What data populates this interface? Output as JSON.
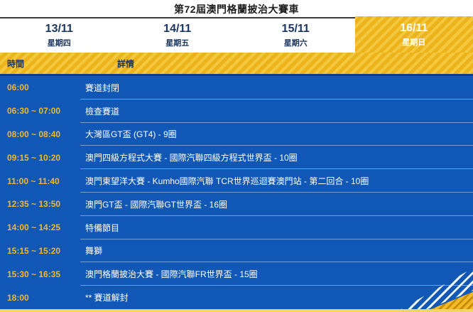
{
  "title": "第72屆澳門格蘭披治大賽車",
  "tabs": [
    {
      "date": "13/11",
      "weekday": "星期四",
      "active": false
    },
    {
      "date": "14/11",
      "weekday": "星期五",
      "active": false
    },
    {
      "date": "15/11",
      "weekday": "星期六",
      "active": false
    },
    {
      "date": "16/11",
      "weekday": "星期日",
      "active": true
    }
  ],
  "schedule": {
    "header": {
      "time": "時間",
      "details": "詳情"
    },
    "rows": [
      {
        "time": "06:00",
        "details": "賽道封閉"
      },
      {
        "time": "06:30 ~ 07:00",
        "details": "檢查賽道"
      },
      {
        "time": "08:00 ~ 08:40",
        "details": "大灣區GT盃 (GT4) - 9圈"
      },
      {
        "time": "09:15 ~ 10:20",
        "details": "澳門四級方程式大賽 - 國際汽聯四級方程式世界盃 - 10圈"
      },
      {
        "time": "11:00 ~ 11:40",
        "details": "澳門東望洋大賽 - Kumho國際汽聯 TCR世界巡迴賽澳門站 - 第二回合 - 10圈"
      },
      {
        "time": "12:35 ~ 13:50",
        "details": "澳門GT盃 - 國際汽聯GT世界盃 - 16圈"
      },
      {
        "time": "14:00 ~ 14:25",
        "details": "特備節目"
      },
      {
        "time": "15:15 ~ 15:20",
        "details": "舞獅"
      },
      {
        "time": "15:30 ~ 16:35",
        "details": "澳門格蘭披治大賽 - 國際汽聯FR世界盃 - 15圈"
      },
      {
        "time": "18:00",
        "details": "** 賽道解封"
      }
    ]
  },
  "colors": {
    "table_blue": "#1157b5",
    "accent_gold": "#ecb31b",
    "accent_gold_light": "#f4c83e",
    "time_text_gold": "#f3b823",
    "navy_text": "#1b3661",
    "navy_divider": "#0b3e92",
    "bottom_border_yellow": "#f0d564"
  }
}
